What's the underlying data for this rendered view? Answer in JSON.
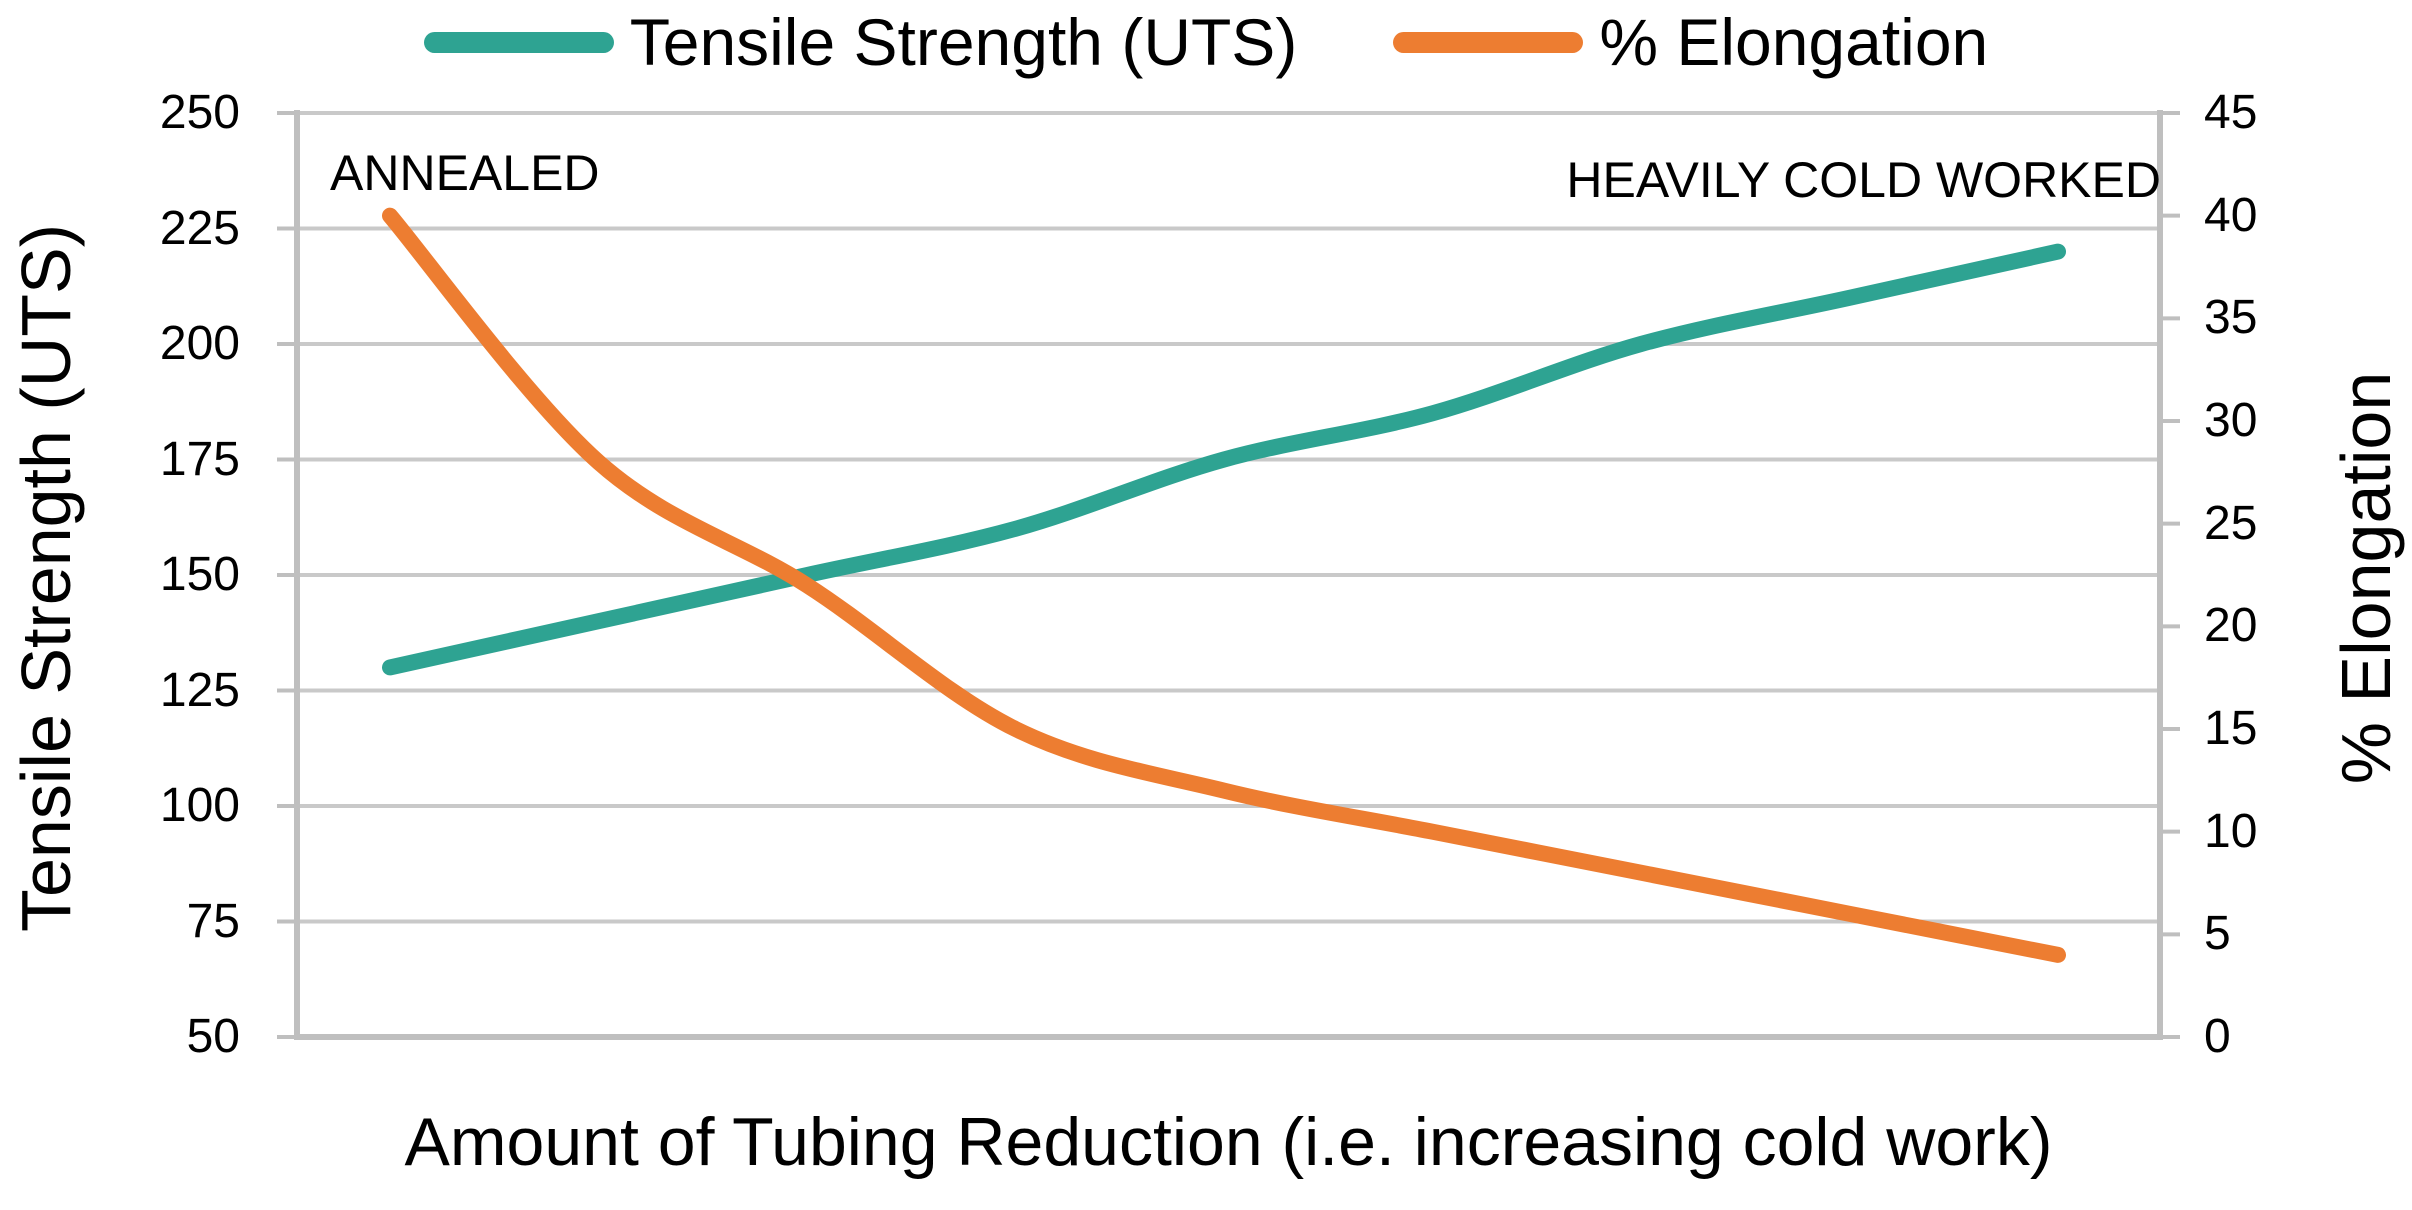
{
  "legend": {
    "items": [
      {
        "label": "Tensile Strength (UTS)",
        "color": "#2EA392"
      },
      {
        "label": "% Elongation",
        "color": "#ED7D31"
      }
    ]
  },
  "axes": {
    "left_title": "Tensile Strength (UTS)",
    "right_title": "% Elongation",
    "x_title": "Amount of Tubing Reduction (i.e. increasing cold work)"
  },
  "annotations": {
    "left": "ANNEALED",
    "right": "HEAVILY COLD WORKED"
  },
  "chart_data": {
    "type": "line",
    "smoothed": true,
    "x_axis": {
      "label": "Amount of Tubing Reduction (i.e. increasing cold work)",
      "tick_labels": [],
      "num_points": 9
    },
    "left_y_axis": {
      "label": "Tensile Strength (UTS)",
      "range": [
        50,
        250
      ],
      "tick_step": 25,
      "ticks": [
        250,
        225,
        200,
        175,
        150,
        125,
        100,
        75,
        50
      ]
    },
    "right_y_axis": {
      "label": "% Elongation",
      "range": [
        0,
        45
      ],
      "tick_step": 5,
      "ticks": [
        45,
        40,
        35,
        30,
        25,
        20,
        15,
        10,
        5,
        0
      ]
    },
    "grid": {
      "horizontal": true,
      "source_axis": "left",
      "color": "#C9C9C9"
    },
    "axis_line_color": "#BFBFBF",
    "series": [
      {
        "name": "Tensile Strength (UTS)",
        "axis": "left",
        "color": "#2EA392",
        "values": [
          130,
          140,
          150,
          160,
          175,
          185,
          200,
          210,
          220
        ]
      },
      {
        "name": "% Elongation",
        "axis": "right",
        "color": "#ED7D31",
        "values": [
          40,
          28,
          22,
          15,
          12,
          10,
          8,
          6,
          4
        ]
      }
    ],
    "point_annotations": [
      {
        "text": "ANNEALED",
        "position": "top-left"
      },
      {
        "text": "HEAVILY COLD WORKED",
        "position": "top-right"
      }
    ],
    "legend_position": "top"
  }
}
